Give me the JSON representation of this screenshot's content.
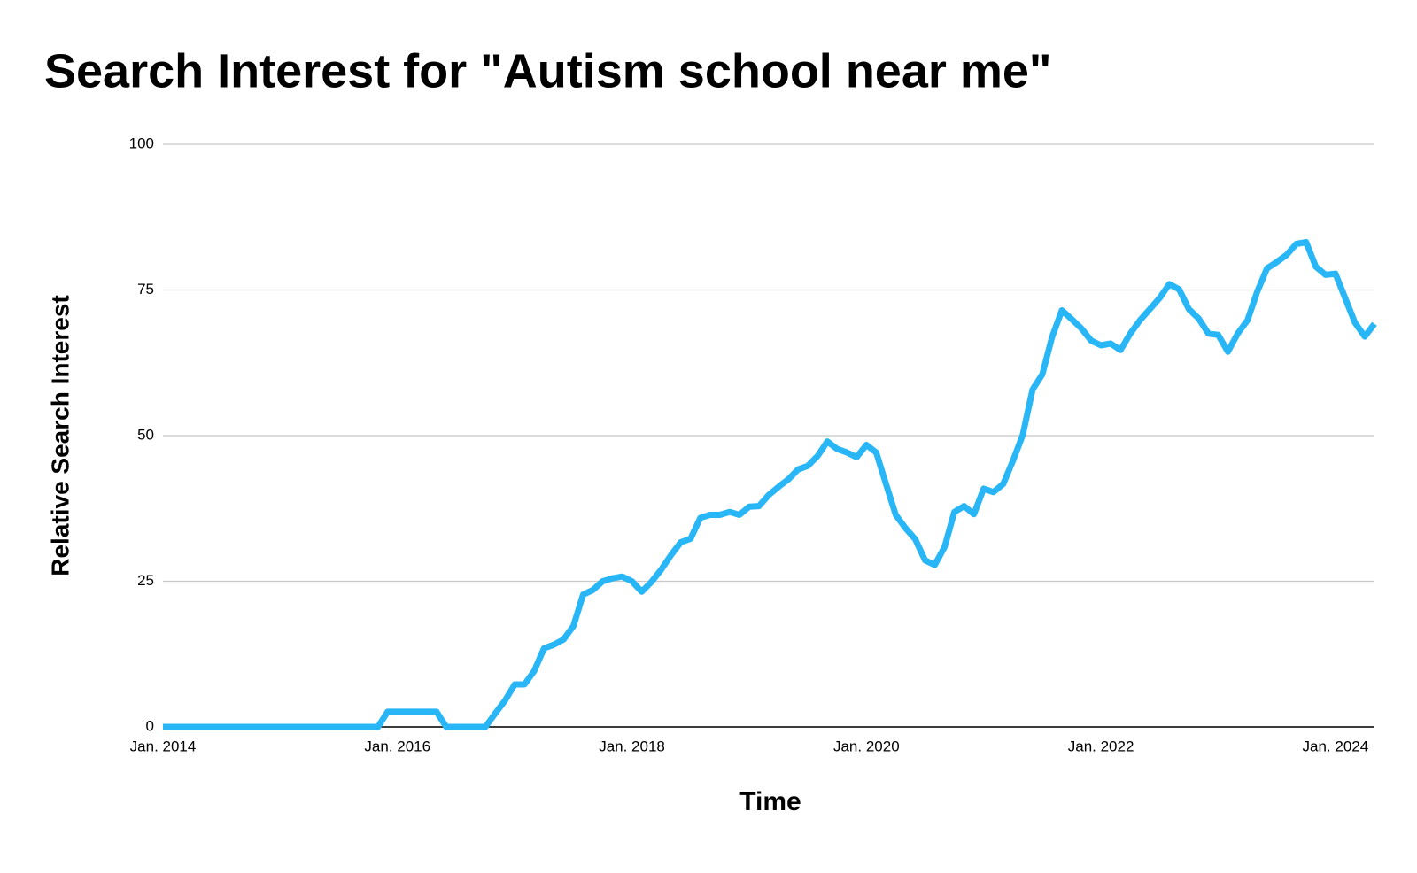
{
  "chart_data": {
    "type": "line",
    "title": "Search Interest for \"Autism school near me\"",
    "x_label": "Time",
    "y_label": "Relative Search Interest",
    "x": [
      "2014-01",
      "2014-02",
      "2014-03",
      "2014-04",
      "2014-05",
      "2014-06",
      "2014-07",
      "2014-08",
      "2014-09",
      "2014-10",
      "2014-11",
      "2014-12",
      "2015-01",
      "2015-02",
      "2015-03",
      "2015-04",
      "2015-05",
      "2015-06",
      "2015-07",
      "2015-08",
      "2015-09",
      "2015-10",
      "2015-11",
      "2015-12",
      "2016-01",
      "2016-02",
      "2016-03",
      "2016-04",
      "2016-05",
      "2016-06",
      "2016-07",
      "2016-08",
      "2016-09",
      "2016-10",
      "2016-11",
      "2016-12",
      "2017-01",
      "2017-02",
      "2017-03",
      "2017-04",
      "2017-05",
      "2017-06",
      "2017-07",
      "2017-08",
      "2017-09",
      "2017-10",
      "2017-11",
      "2017-12",
      "2018-01",
      "2018-02",
      "2018-03",
      "2018-04",
      "2018-05",
      "2018-06",
      "2018-07",
      "2018-08",
      "2018-09",
      "2018-10",
      "2018-11",
      "2018-12",
      "2019-01",
      "2019-02",
      "2019-03",
      "2019-04",
      "2019-05",
      "2019-06",
      "2019-07",
      "2019-08",
      "2019-09",
      "2019-10",
      "2019-11",
      "2019-12",
      "2020-01",
      "2020-02",
      "2020-03",
      "2020-04",
      "2020-05",
      "2020-06",
      "2020-07",
      "2020-08",
      "2020-09",
      "2020-10",
      "2020-11",
      "2020-12",
      "2021-01",
      "2021-02",
      "2021-03",
      "2021-04",
      "2021-05",
      "2021-06",
      "2021-07",
      "2021-08",
      "2021-09",
      "2021-10",
      "2021-11",
      "2021-12",
      "2022-01",
      "2022-02",
      "2022-03",
      "2022-04",
      "2022-05",
      "2022-06",
      "2022-07",
      "2022-08",
      "2022-09",
      "2022-10",
      "2022-11",
      "2022-12",
      "2023-01",
      "2023-02",
      "2023-03",
      "2023-04",
      "2023-05",
      "2023-06",
      "2023-07",
      "2023-08",
      "2023-09",
      "2023-10",
      "2023-11",
      "2023-12",
      "2024-01",
      "2024-02",
      "2024-03",
      "2024-04",
      "2024-05"
    ],
    "series": [
      {
        "name": "Relative Search Interest",
        "color": "#29b6f6",
        "values": [
          0,
          0,
          0,
          0,
          0,
          0,
          0,
          0,
          0,
          0,
          0,
          0,
          0,
          0,
          0,
          0,
          0,
          0,
          0,
          0,
          0,
          0,
          0,
          2.6,
          2.6,
          2.6,
          2.6,
          2.6,
          2.6,
          0,
          0,
          0,
          0,
          0,
          2.3,
          4.5,
          7.3,
          7.3,
          9.6,
          13.5,
          14.1,
          15,
          17.3,
          22.7,
          23.5,
          25,
          25.5,
          25.8,
          25,
          23.2,
          24.9,
          27,
          29.5,
          31.7,
          32.3,
          35.9,
          36.4,
          36.4,
          36.9,
          36.4,
          37.8,
          37.9,
          39.8,
          41.2,
          42.5,
          44.2,
          44.8,
          46.5,
          49,
          47.7,
          47.1,
          46.3,
          48.4,
          47.1,
          41.7,
          36.4,
          34.1,
          32.2,
          28.6,
          27.8,
          30.9,
          36.9,
          37.9,
          36.5,
          40.9,
          40.3,
          41.7,
          45.7,
          50.1,
          57.9,
          60.5,
          66.9,
          71.5,
          70,
          68.4,
          66.3,
          65.5,
          65.8,
          64.7,
          67.5,
          69.8,
          71.7,
          73.6,
          76,
          75.1,
          71.7,
          70.1,
          67.5,
          67.3,
          64.4,
          67.5,
          69.8,
          74.7,
          78.7,
          79.8,
          81,
          82.9,
          83.2,
          79,
          77.6,
          77.8,
          73.6,
          69.4,
          67,
          69.2
        ]
      }
    ],
    "xlim": [
      "2014-01",
      "2024-05"
    ],
    "xticks": [
      {
        "value": "2014-01",
        "label": "Jan. 2014"
      },
      {
        "value": "2016-01",
        "label": "Jan. 2016"
      },
      {
        "value": "2018-01",
        "label": "Jan. 2018"
      },
      {
        "value": "2020-01",
        "label": "Jan. 2020"
      },
      {
        "value": "2022-01",
        "label": "Jan. 2022"
      },
      {
        "value": "2024-01",
        "label": "Jan. 2024"
      }
    ],
    "ylim": [
      0,
      100
    ],
    "yticks": [
      0,
      25,
      50,
      75,
      100
    ],
    "grid": true
  }
}
